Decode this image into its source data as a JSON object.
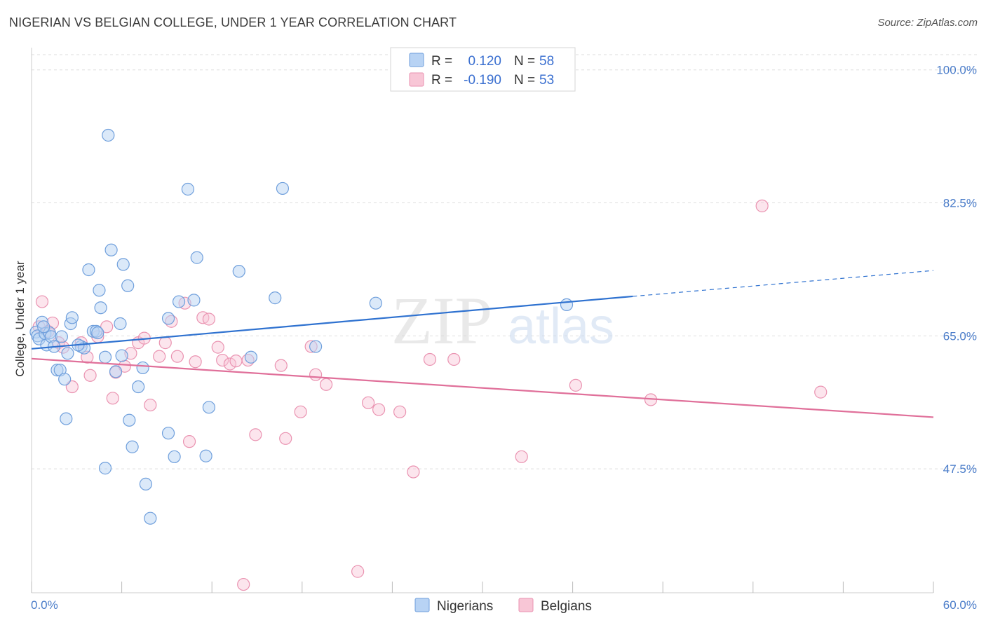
{
  "title": "NIGERIAN VS BELGIAN COLLEGE, UNDER 1 YEAR CORRELATION CHART",
  "source": "Source: ZipAtlas.com",
  "colors": {
    "nigerians_fill": "#b8d3f4",
    "nigerians_stroke": "#6f9fdc",
    "nigerians_line": "#2f72d0",
    "belgians_fill": "#f8c6d6",
    "belgians_stroke": "#ea93b1",
    "belgians_line": "#e0709a",
    "grid": "#dddddd",
    "axis_text": "#4a7cc9"
  },
  "legend": {
    "rows": [
      {
        "r_label": "R =",
        "r_value": "0.120",
        "n_label": "N =",
        "n_value": "58"
      },
      {
        "r_label": "R =",
        "r_value": "-0.190",
        "n_label": "N =",
        "n_value": "53"
      }
    ]
  },
  "chart_data": {
    "type": "scatter",
    "xlabel": "",
    "ylabel": "College, Under 1 year",
    "x_tick_labels": [
      "0.0%",
      "60.0%"
    ],
    "y_tick_labels": [
      "100.0%",
      "82.5%",
      "65.0%",
      "47.5%"
    ],
    "y_ticks": [
      100.0,
      82.5,
      65.0,
      47.5
    ],
    "xlim": [
      0,
      60
    ],
    "ylim": [
      31.2,
      102
    ],
    "grid": true,
    "legend_position": "top-center",
    "watermark": "ZIPatlas",
    "series": [
      {
        "name": "Nigerians",
        "trend": {
          "x0": 0.0,
          "y0": 63.3,
          "x1": 40.0,
          "y1": 70.2,
          "dashed_to_x": 60.0,
          "dashed_to_y": 73.6
        },
        "points": [
          [
            0.3,
            65.5
          ],
          [
            0.4,
            65.0
          ],
          [
            0.5,
            64.6
          ],
          [
            0.7,
            66.8
          ],
          [
            0.9,
            65.3
          ],
          [
            1.0,
            63.8
          ],
          [
            1.2,
            65.4
          ],
          [
            1.3,
            64.9
          ],
          [
            1.5,
            63.6
          ],
          [
            1.7,
            60.5
          ],
          [
            1.9,
            60.5
          ],
          [
            2.0,
            64.9
          ],
          [
            2.2,
            59.3
          ],
          [
            2.4,
            62.7
          ],
          [
            2.6,
            66.6
          ],
          [
            2.7,
            67.4
          ],
          [
            2.3,
            54.1
          ],
          [
            3.3,
            63.6
          ],
          [
            3.5,
            63.4
          ],
          [
            3.8,
            73.7
          ],
          [
            4.1,
            65.6
          ],
          [
            4.3,
            65.6
          ],
          [
            4.5,
            71.0
          ],
          [
            4.6,
            68.7
          ],
          [
            4.9,
            47.6
          ],
          [
            4.9,
            62.2
          ],
          [
            5.1,
            91.4
          ],
          [
            5.3,
            76.3
          ],
          [
            5.6,
            60.3
          ],
          [
            5.9,
            66.6
          ],
          [
            6.0,
            62.4
          ],
          [
            6.1,
            74.4
          ],
          [
            6.4,
            71.6
          ],
          [
            6.5,
            53.9
          ],
          [
            6.7,
            50.4
          ],
          [
            7.1,
            58.3
          ],
          [
            7.4,
            60.8
          ],
          [
            7.6,
            45.5
          ],
          [
            7.9,
            41.0
          ],
          [
            9.1,
            52.2
          ],
          [
            9.1,
            67.3
          ],
          [
            9.5,
            49.1
          ],
          [
            9.8,
            69.5
          ],
          [
            10.4,
            84.3
          ],
          [
            10.8,
            69.7
          ],
          [
            11.0,
            75.3
          ],
          [
            11.6,
            49.2
          ],
          [
            11.8,
            55.6
          ],
          [
            13.8,
            73.5
          ],
          [
            14.6,
            62.2
          ],
          [
            16.2,
            70.0
          ],
          [
            16.7,
            84.4
          ],
          [
            18.9,
            63.6
          ],
          [
            22.9,
            69.3
          ],
          [
            35.6,
            69.1
          ],
          [
            0.8,
            66.2
          ],
          [
            3.1,
            63.8
          ],
          [
            4.4,
            65.4
          ]
        ]
      },
      {
        "name": "Belgians",
        "trend": {
          "x0": 0.0,
          "y0": 62.0,
          "x1": 60.0,
          "y1": 54.3
        },
        "points": [
          [
            0.5,
            66.2
          ],
          [
            0.7,
            69.5
          ],
          [
            1.1,
            65.6
          ],
          [
            1.4,
            66.7
          ],
          [
            1.8,
            64.1
          ],
          [
            2.1,
            63.5
          ],
          [
            2.7,
            58.3
          ],
          [
            3.3,
            64.1
          ],
          [
            3.7,
            62.2
          ],
          [
            3.9,
            59.8
          ],
          [
            4.4,
            64.9
          ],
          [
            5.0,
            66.2
          ],
          [
            5.4,
            56.8
          ],
          [
            5.6,
            60.2
          ],
          [
            6.2,
            61.0
          ],
          [
            6.6,
            62.7
          ],
          [
            7.1,
            64.1
          ],
          [
            7.5,
            64.7
          ],
          [
            7.9,
            55.9
          ],
          [
            8.5,
            62.3
          ],
          [
            8.9,
            64.1
          ],
          [
            9.3,
            66.9
          ],
          [
            9.7,
            62.3
          ],
          [
            10.2,
            69.3
          ],
          [
            10.5,
            51.1
          ],
          [
            10.9,
            61.6
          ],
          [
            11.4,
            67.4
          ],
          [
            11.8,
            67.2
          ],
          [
            12.4,
            63.5
          ],
          [
            12.7,
            61.8
          ],
          [
            13.2,
            61.3
          ],
          [
            13.6,
            61.7
          ],
          [
            14.1,
            32.3
          ],
          [
            14.4,
            61.8
          ],
          [
            14.9,
            52.0
          ],
          [
            16.6,
            61.1
          ],
          [
            16.9,
            51.5
          ],
          [
            17.9,
            55.0
          ],
          [
            18.6,
            63.6
          ],
          [
            18.9,
            59.9
          ],
          [
            19.6,
            58.6
          ],
          [
            21.7,
            34.0
          ],
          [
            22.4,
            56.2
          ],
          [
            23.1,
            55.3
          ],
          [
            24.5,
            55.0
          ],
          [
            25.4,
            47.1
          ],
          [
            26.5,
            61.9
          ],
          [
            28.1,
            61.9
          ],
          [
            32.6,
            49.1
          ],
          [
            36.2,
            58.5
          ],
          [
            41.2,
            56.6
          ],
          [
            48.6,
            82.1
          ],
          [
            52.5,
            57.6
          ]
        ]
      }
    ]
  },
  "bottom_legend": {
    "items": [
      "Nigerians",
      "Belgians"
    ]
  }
}
